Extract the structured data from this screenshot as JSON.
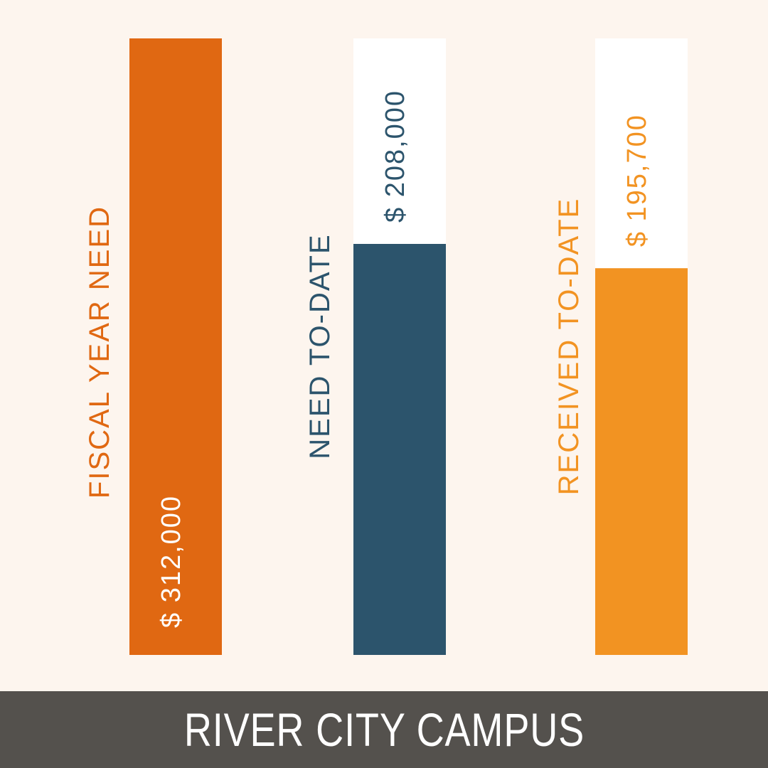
{
  "footer": {
    "title": "RIVER CITY CAMPUS"
  },
  "colors": {
    "background": "#fdf5ee",
    "track": "#ffffff",
    "fiscal_year_need": "#e06812",
    "need_to_date": "#2c546c",
    "received_to_date": "#f29322",
    "footer": "#54514d",
    "value_on_bar": "#ffffff"
  },
  "chart_data": {
    "type": "bar",
    "orientation": "vertical",
    "categories": [
      "FISCAL YEAR NEED",
      "NEED TO-DATE",
      "RECEIVED TO-DATE"
    ],
    "values": [
      312000,
      208000,
      195700
    ],
    "value_labels": [
      "$ 312,000",
      "$ 208,000",
      "$ 195,700"
    ],
    "ylim": [
      0,
      312000
    ],
    "grid": false,
    "legend": "none"
  }
}
